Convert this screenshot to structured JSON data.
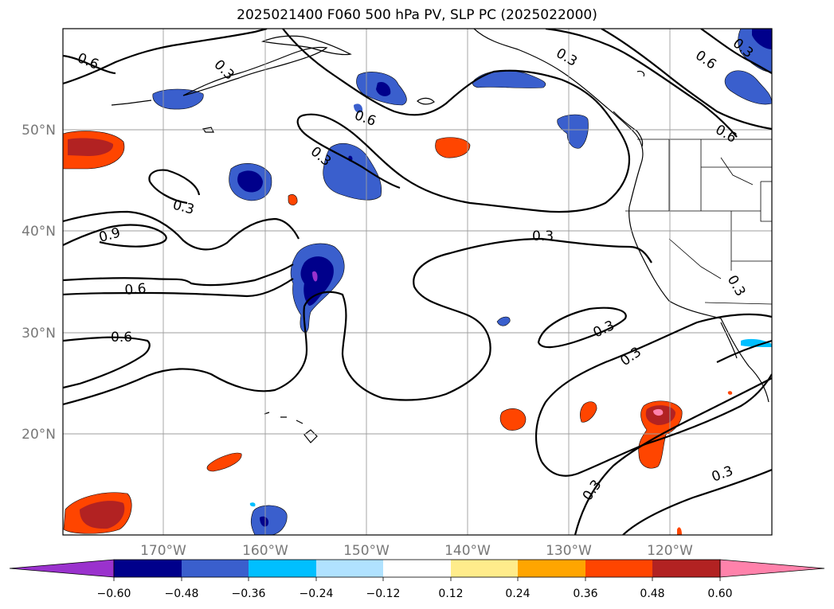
{
  "title": "2025021400 F060 500 hPa PV, SLP PC (2025022000)",
  "lon_ticks": [
    "170°W",
    "160°W",
    "150°W",
    "140°W",
    "130°W",
    "120°W"
  ],
  "lat_ticks": [
    "50°N",
    "40°N",
    "30°N",
    "20°N"
  ],
  "colorbar": {
    "colors": [
      "#9a32cd",
      "#00008b",
      "#3a5fcd",
      "#00bfff",
      "#b0e2ff",
      "#ffffff",
      "#ffec8b",
      "#ffa500",
      "#ff4500",
      "#b22222",
      "#ff82ab"
    ],
    "labels": [
      "−0.60",
      "−0.48",
      "−0.36",
      "−0.24",
      "−0.12",
      "0.12",
      "0.24",
      "0.36",
      "0.48",
      "0.60"
    ]
  },
  "contour_labels": [
    "0.6",
    "0.3",
    "0.6",
    "0.3",
    "0.6",
    "0.3",
    "0.6",
    "0.3",
    "0.9",
    "0.6",
    "0.6",
    "0.3",
    "0.3",
    "0.3",
    "0.3",
    "0.3",
    "0.3"
  ]
}
